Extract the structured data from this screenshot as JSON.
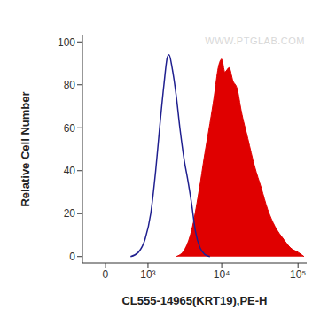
{
  "chart_data": {
    "type": "area",
    "x_label": "CL555-14965(KRT19),PE-H",
    "y_label": "Relative Cell Number",
    "annotations": [
      "WWW.PTGLAB.COM"
    ],
    "log": "x",
    "xlim": [
      -450,
      130000
    ],
    "xticks": [
      0,
      {
        "value": 1000,
        "label": "10³"
      },
      {
        "value": 10000,
        "label": "10⁴"
      },
      {
        "value": 100000,
        "label": "10⁵"
      }
    ],
    "ylim": [
      -3,
      103
    ],
    "yticks": [
      0,
      20,
      40,
      60,
      80,
      100
    ],
    "series": [
      {
        "type": "area",
        "color": "#e00000",
        "x": [
          2500,
          3200,
          4000,
          5000,
          6000,
          7000,
          8000,
          9000,
          10000,
          11000,
          12500,
          14000,
          16000,
          18000,
          22000,
          27000,
          33000,
          40000,
          50000,
          65000,
          80000,
          100000,
          120000
        ],
        "values": [
          0,
          3,
          12,
          30,
          48,
          62,
          75,
          88,
          92,
          86,
          88,
          82,
          78,
          68,
          55,
          42,
          32,
          22,
          14,
          8,
          4,
          2,
          0
        ]
      },
      {
        "type": "line",
        "color": "#1f1f8f",
        "x": [
          500,
          700,
          900,
          1100,
          1300,
          1500,
          1700,
          1900,
          2000,
          2200,
          2500,
          2800,
          3200,
          3600,
          4000,
          4500,
          5200,
          6000,
          7000
        ],
        "values": [
          0,
          2,
          8,
          20,
          40,
          62,
          80,
          93,
          94,
          88,
          75,
          60,
          45,
          35,
          25,
          12,
          4,
          1,
          0
        ]
      }
    ]
  }
}
